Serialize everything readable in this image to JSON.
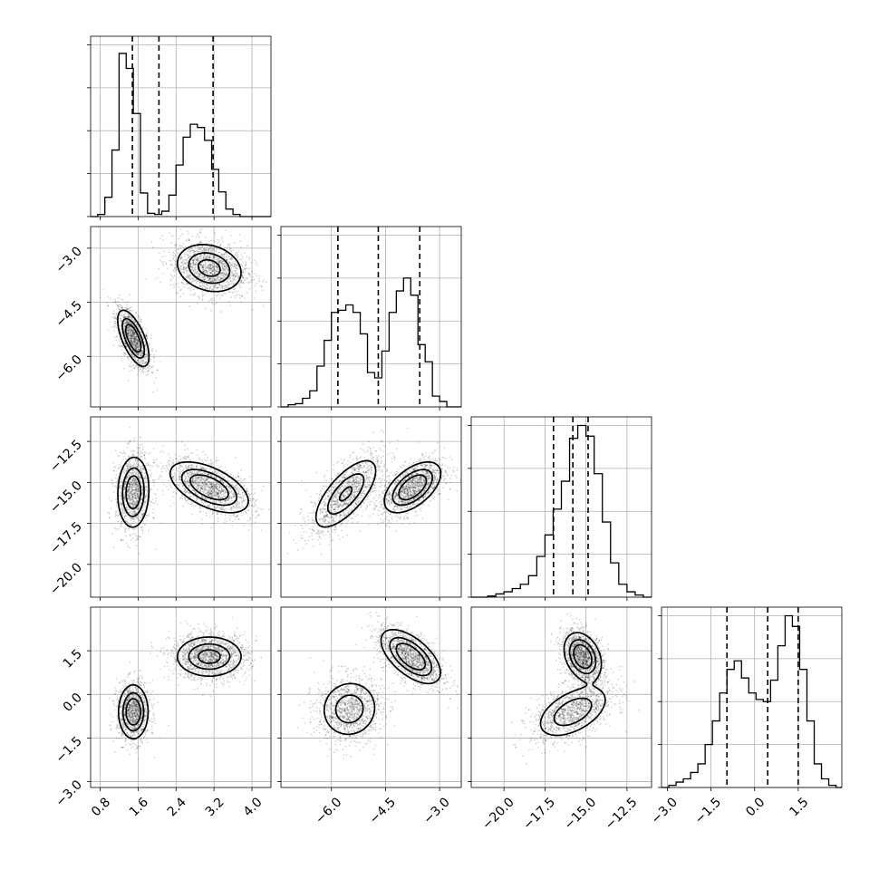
{
  "chart_data": {
    "type": "scatter",
    "layout": "corner",
    "grid": true,
    "params": [
      {
        "range": [
          0.6,
          4.4
        ],
        "ticks": [
          0.8,
          1.6,
          2.4,
          3.2,
          4.0
        ],
        "tick_labels": [
          "0.8",
          "1.6",
          "2.4",
          "3.2",
          "4.0"
        ],
        "quantiles": [
          1.48,
          2.04,
          3.18
        ],
        "modes": [
          {
            "w": 0.45,
            "mu": 1.5,
            "sd": 0.15
          },
          {
            "w": 0.55,
            "mu": 3.1,
            "sd": 0.3
          }
        ],
        "hist": {
          "edges": [
            0.6,
            0.75,
            0.9,
            1.05,
            1.2,
            1.35,
            1.5,
            1.65,
            1.8,
            1.95,
            2.1,
            2.25,
            2.4,
            2.55,
            2.7,
            2.85,
            3.0,
            3.15,
            3.3,
            3.45,
            3.6,
            3.75,
            3.9,
            4.05,
            4.2,
            4.4
          ],
          "counts": [
            0,
            2,
            18,
            62,
            152,
            138,
            96,
            22,
            3,
            2,
            5,
            20,
            48,
            74,
            86,
            83,
            71,
            44,
            23,
            7,
            2,
            0,
            0,
            0,
            0
          ]
        }
      },
      {
        "range": [
          -7.4,
          -2.4
        ],
        "ticks": [
          -6.0,
          -4.5,
          -3.0
        ],
        "tick_labels": [
          "−6.0",
          "−4.5",
          "−3.0"
        ],
        "quantiles": [
          -5.82,
          -4.7,
          -3.55
        ],
        "modes": [
          {
            "w": 0.45,
            "mu": -5.5,
            "sd": 0.35
          },
          {
            "w": 0.55,
            "mu": -3.7,
            "sd": 0.3
          }
        ],
        "hist": {
          "edges": [
            -7.4,
            -7.2,
            -7.0,
            -6.8,
            -6.6,
            -6.4,
            -6.2,
            -6.0,
            -5.8,
            -5.6,
            -5.4,
            -5.2,
            -5.0,
            -4.8,
            -4.6,
            -4.4,
            -4.2,
            -4.0,
            -3.8,
            -3.6,
            -3.4,
            -3.2,
            -3.0,
            -2.8,
            -2.6,
            -2.4
          ],
          "counts": [
            0,
            2,
            3,
            8,
            15,
            38,
            62,
            88,
            90,
            95,
            88,
            68,
            32,
            27,
            52,
            88,
            108,
            120,
            104,
            58,
            42,
            10,
            5,
            0,
            0
          ]
        }
      },
      {
        "range": [
          -22,
          -11
        ],
        "ticks": [
          -20.0,
          -17.5,
          -15.0,
          -12.5
        ],
        "tick_labels": [
          "−20.0",
          "−17.5",
          "−15.0",
          "−12.5"
        ],
        "quantiles": [
          -16.98,
          -15.8,
          -14.87
        ],
        "modes": [
          {
            "w": 0.45,
            "mu": -15.8,
            "sd": 0.9
          },
          {
            "w": 0.55,
            "mu": -15.3,
            "sd": 0.75
          }
        ],
        "hist": {
          "edges": [
            -22.0,
            -21.5,
            -21.0,
            -20.5,
            -20.0,
            -19.5,
            -19.0,
            -18.5,
            -18.0,
            -17.5,
            -17.0,
            -16.5,
            -16.0,
            -15.5,
            -15.0,
            -14.5,
            -14.0,
            -13.5,
            -13.0,
            -12.5,
            -12.0,
            -11.5,
            -11.0
          ],
          "counts": [
            0,
            0,
            1,
            3,
            5,
            8,
            12,
            20,
            38,
            58,
            82,
            108,
            148,
            160,
            150,
            115,
            70,
            32,
            12,
            5,
            2,
            0
          ]
        }
      },
      {
        "range": [
          -3.2,
          3.0
        ],
        "ticks": [
          -3.0,
          -1.5,
          0.0,
          1.5
        ],
        "tick_labels": [
          "−3.0",
          "−1.5",
          "0.0",
          "1.5"
        ],
        "quantiles": [
          -0.95,
          0.45,
          1.5
        ],
        "modes": [
          {
            "w": 0.45,
            "mu": -0.6,
            "sd": 0.42
          },
          {
            "w": 0.55,
            "mu": 1.3,
            "sd": 0.35
          }
        ],
        "hist": {
          "edges": [
            -3.2,
            -2.95,
            -2.7,
            -2.45,
            -2.2,
            -1.95,
            -1.7,
            -1.45,
            -1.2,
            -0.95,
            -0.7,
            -0.45,
            -0.2,
            0.05,
            0.3,
            0.55,
            0.8,
            1.05,
            1.3,
            1.55,
            1.8,
            2.05,
            2.3,
            2.55,
            2.8,
            3.0
          ],
          "counts": [
            0,
            2,
            5,
            8,
            14,
            22,
            40,
            62,
            88,
            110,
            118,
            102,
            88,
            82,
            80,
            100,
            132,
            160,
            150,
            110,
            62,
            22,
            8,
            2,
            0
          ]
        }
      }
    ],
    "hist_ylim": [
      0,
      168
    ],
    "hist_ticks": [
      0,
      40,
      80,
      120,
      160
    ],
    "pairs": [
      {
        "row": 1,
        "col": 0,
        "blobs": [
          {
            "mx": 1.5,
            "my": -5.5,
            "sx": 0.16,
            "sy": 0.38,
            "rho": -0.65,
            "w": 0.45,
            "peak": 1.0
          },
          {
            "mx": 3.1,
            "my": -3.55,
            "sx": 0.35,
            "sy": 0.34,
            "rho": -0.2,
            "w": 0.55,
            "peak": 0.75
          }
        ]
      },
      {
        "row": 2,
        "col": 0,
        "blobs": [
          {
            "mx": 1.5,
            "my": -15.6,
            "sx": 0.16,
            "sy": 1.05,
            "rho": 0.05,
            "w": 0.45,
            "peak": 0.95
          },
          {
            "mx": 3.1,
            "my": -15.3,
            "sx": 0.4,
            "sy": 0.75,
            "rho": -0.55,
            "w": 0.55,
            "peak": 1.0
          }
        ]
      },
      {
        "row": 2,
        "col": 1,
        "blobs": [
          {
            "mx": -5.6,
            "my": -15.7,
            "sx": 0.45,
            "sy": 1.1,
            "rho": 0.7,
            "w": 0.45,
            "peak": 0.65
          },
          {
            "mx": -3.75,
            "my": -15.3,
            "sx": 0.38,
            "sy": 0.75,
            "rho": 0.55,
            "w": 0.55,
            "peak": 1.0
          }
        ]
      },
      {
        "row": 3,
        "col": 0,
        "blobs": [
          {
            "mx": 1.5,
            "my": -0.6,
            "sx": 0.15,
            "sy": 0.45,
            "rho": 0.0,
            "w": 0.45,
            "peak": 1.0
          },
          {
            "mx": 3.1,
            "my": 1.3,
            "sx": 0.35,
            "sy": 0.35,
            "rho": 0.0,
            "w": 0.55,
            "peak": 0.75
          }
        ]
      },
      {
        "row": 3,
        "col": 1,
        "blobs": [
          {
            "mx": -5.5,
            "my": -0.5,
            "sx": 0.4,
            "sy": 0.5,
            "rho": 0.05,
            "w": 0.45,
            "peak": 0.55
          },
          {
            "mx": -3.8,
            "my": 1.3,
            "sx": 0.4,
            "sy": 0.45,
            "rho": -0.6,
            "w": 0.55,
            "peak": 1.0
          }
        ]
      },
      {
        "row": 3,
        "col": 2,
        "blobs": [
          {
            "mx": -15.8,
            "my": -0.6,
            "sx": 1.1,
            "sy": 0.45,
            "rho": 0.5,
            "w": 0.45,
            "peak": 0.6
          },
          {
            "mx": -15.2,
            "my": 1.3,
            "sx": 0.55,
            "sy": 0.4,
            "rho": -0.3,
            "w": 0.55,
            "peak": 1.0
          }
        ]
      }
    ]
  }
}
